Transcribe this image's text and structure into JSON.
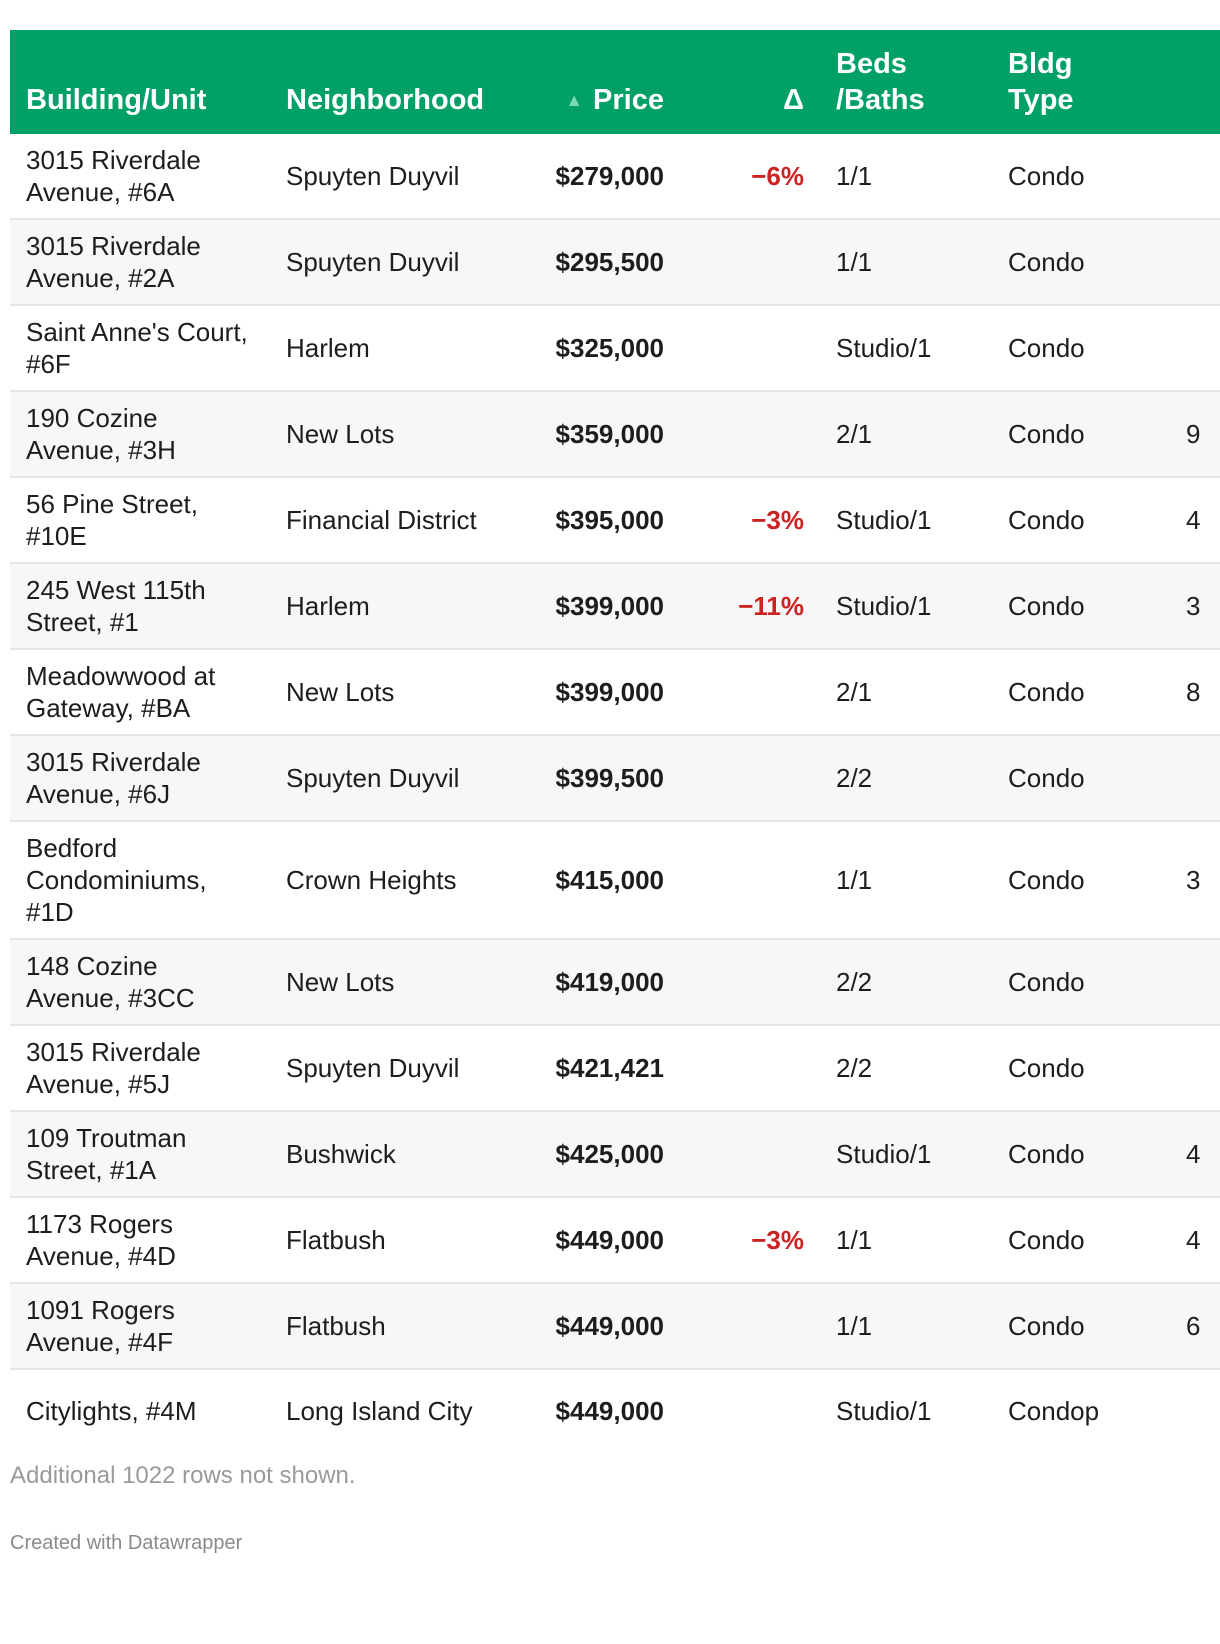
{
  "chart_data": {
    "type": "table",
    "columns": [
      "Building/Unit",
      "Neighborhood",
      "Price",
      "Δ",
      "Beds\n/Baths",
      "Bldg\nType"
    ],
    "sorted_by": "Price",
    "sort_direction": "ascending",
    "rows": [
      {
        "building": "3015 Riverdale Avenue, #6A",
        "neighborhood": "Spuyten Duyvil",
        "price": "$279,000",
        "delta": "−6%",
        "beds_baths": "1/1",
        "bldg_type": "Condo",
        "extra": ""
      },
      {
        "building": "3015 Riverdale Avenue, #2A",
        "neighborhood": "Spuyten Duyvil",
        "price": "$295,500",
        "delta": "",
        "beds_baths": "1/1",
        "bldg_type": "Condo",
        "extra": ""
      },
      {
        "building": "Saint Anne's Court, #6F",
        "neighborhood": "Harlem",
        "price": "$325,000",
        "delta": "",
        "beds_baths": "Studio/1",
        "bldg_type": "Condo",
        "extra": ""
      },
      {
        "building": "190 Cozine Avenue, #3H",
        "neighborhood": "New Lots",
        "price": "$359,000",
        "delta": "",
        "beds_baths": "2/1",
        "bldg_type": "Condo",
        "extra": "9"
      },
      {
        "building": "56 Pine Street, #10E",
        "neighborhood": "Financial District",
        "price": "$395,000",
        "delta": "−3%",
        "beds_baths": "Studio/1",
        "bldg_type": "Condo",
        "extra": "4"
      },
      {
        "building": "245 West 115th Street, #1",
        "neighborhood": "Harlem",
        "price": "$399,000",
        "delta": "−11%",
        "beds_baths": "Studio/1",
        "bldg_type": "Condo",
        "extra": "3"
      },
      {
        "building": "Meadowwood at Gateway, #BA",
        "neighborhood": "New Lots",
        "price": "$399,000",
        "delta": "",
        "beds_baths": "2/1",
        "bldg_type": "Condo",
        "extra": "8"
      },
      {
        "building": "3015 Riverdale Avenue, #6J",
        "neighborhood": "Spuyten Duyvil",
        "price": "$399,500",
        "delta": "",
        "beds_baths": "2/2",
        "bldg_type": "Condo",
        "extra": ""
      },
      {
        "building": "Bedford Condominiums, #1D",
        "neighborhood": "Crown Heights",
        "price": "$415,000",
        "delta": "",
        "beds_baths": "1/1",
        "bldg_type": "Condo",
        "extra": "3"
      },
      {
        "building": "148 Cozine Avenue, #3CC",
        "neighborhood": "New Lots",
        "price": "$419,000",
        "delta": "",
        "beds_baths": "2/2",
        "bldg_type": "Condo",
        "extra": ""
      },
      {
        "building": "3015 Riverdale Avenue, #5J",
        "neighborhood": "Spuyten Duyvil",
        "price": "$421,421",
        "delta": "",
        "beds_baths": "2/2",
        "bldg_type": "Condo",
        "extra": ""
      },
      {
        "building": "109 Troutman Street, #1A",
        "neighborhood": "Bushwick",
        "price": "$425,000",
        "delta": "",
        "beds_baths": "Studio/1",
        "bldg_type": "Condo",
        "extra": "4"
      },
      {
        "building": "1173 Rogers Avenue, #4D",
        "neighborhood": "Flatbush",
        "price": "$449,000",
        "delta": "−3%",
        "beds_baths": "1/1",
        "bldg_type": "Condo",
        "extra": "4"
      },
      {
        "building": "1091 Rogers Avenue, #4F",
        "neighborhood": "Flatbush",
        "price": "$449,000",
        "delta": "",
        "beds_baths": "1/1",
        "bldg_type": "Condo",
        "extra": "6"
      },
      {
        "building": "Citylights, #4M",
        "neighborhood": "Long Island City",
        "price": "$449,000",
        "delta": "",
        "beds_baths": "Studio/1",
        "bldg_type": "Condop",
        "extra": ""
      }
    ],
    "notes": "Additional 1022 rows not shown.",
    "credit": "Created with Datawrapper"
  },
  "colors": {
    "header_bg": "#00a066",
    "negative": "#cc2222",
    "stripe": "#f7f7f7"
  }
}
